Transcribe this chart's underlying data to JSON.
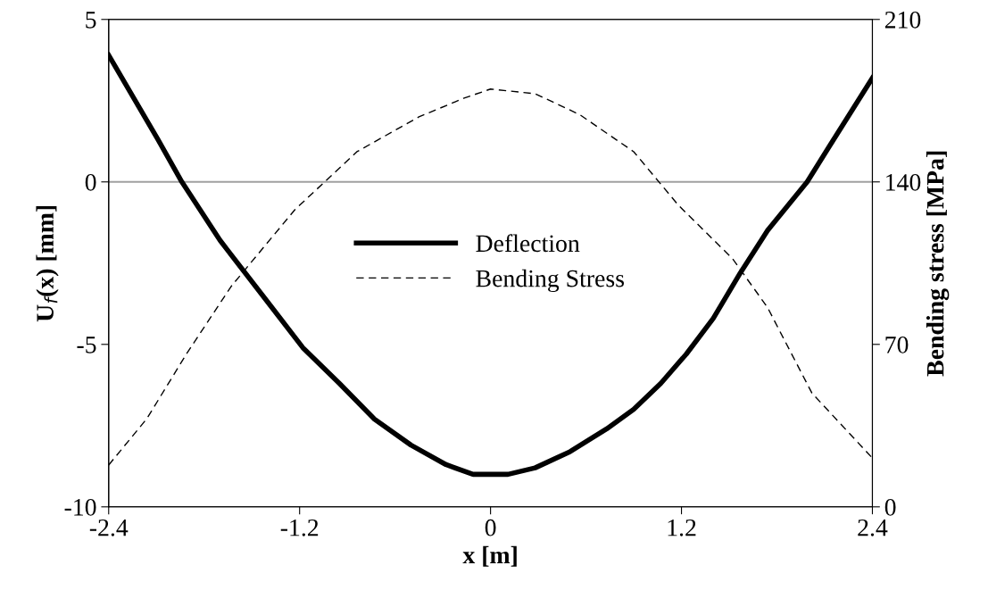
{
  "chart_data": {
    "type": "line",
    "xlabel": "x [m]",
    "ylabel": "U$_{f}$(x) [mm]",
    "y2label": "Bending stress [MPa]",
    "xlim": [
      -2.4,
      2.4
    ],
    "xticks": [
      -2.4,
      -1.2,
      0,
      1.2,
      2.4
    ],
    "ylim": [
      -10,
      5
    ],
    "yticks": [
      -10,
      -5,
      0,
      5
    ],
    "y2lim": [
      0,
      210
    ],
    "y2ticks": [
      0,
      70,
      140,
      210
    ],
    "grid": false,
    "legend": "center",
    "marker": "none",
    "ref_lines": [
      {
        "axis": "y",
        "value": 0,
        "color": "#a0a0a0",
        "line_style": "solid"
      }
    ],
    "series": [
      {
        "name": "Deflection",
        "color": "#000000",
        "line_style": "solid",
        "x": [
          -2.4,
          -2.09,
          -1.94,
          -1.7,
          -1.4,
          -1.18,
          -0.95,
          -0.73,
          -0.5,
          -0.28,
          -0.11,
          0.11,
          0.28,
          0.5,
          0.73,
          0.9,
          1.07,
          1.23,
          1.4,
          1.57,
          1.74,
          1.99,
          2.13,
          2.4
        ],
        "values": [
          3.9,
          1.3,
          0,
          -1.8,
          -3.7,
          -5.1,
          -6.2,
          -7.3,
          -8.1,
          -8.7,
          -9.0,
          -9.0,
          -8.8,
          -8.3,
          -7.6,
          -7.0,
          -6.2,
          -5.3,
          -4.2,
          -2.8,
          -1.5,
          0,
          1.1,
          3.2
        ]
      },
      {
        "name": "Bending Stress",
        "color": "#000000",
        "line_style": "dashed",
        "axis": "y2",
        "x": [
          -2.4,
          -2.16,
          -1.91,
          -1.63,
          -1.23,
          -0.84,
          -0.45,
          -0.17,
          0,
          0.28,
          0.56,
          0.9,
          1.18,
          1.52,
          1.74,
          2.02,
          2.4
        ],
        "values": [
          18,
          38,
          66,
          95,
          128,
          153,
          168,
          176,
          180,
          178,
          169,
          153,
          130,
          107,
          86,
          49,
          21
        ]
      }
    ]
  }
}
